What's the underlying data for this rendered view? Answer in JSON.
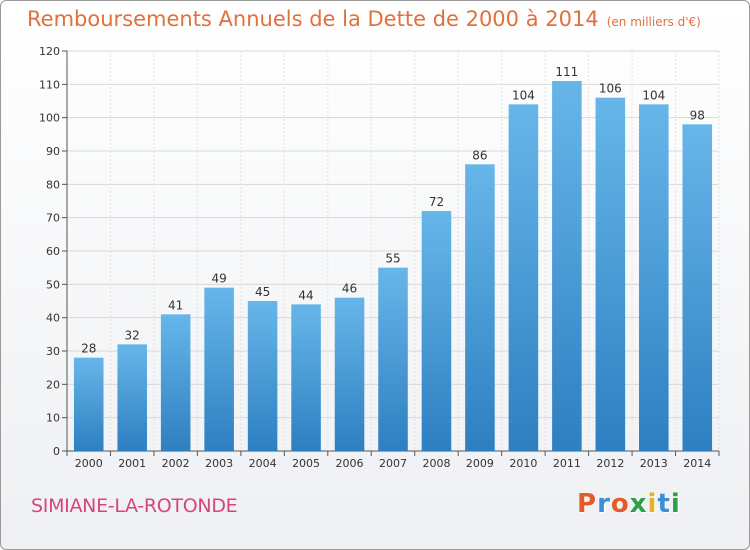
{
  "title": "Remboursements Annuels de la Dette de 2000 à 2014",
  "subtitle": "(en milliers d'€)",
  "commune": "SIMIANE-LA-ROTONDE",
  "logo": {
    "letters": [
      "P",
      "r",
      "o",
      "x",
      "i",
      "t",
      "i"
    ],
    "colors": [
      "#e35b2b",
      "#3a8fd8",
      "#e35b2b",
      "#2f9e44",
      "#e0b32a",
      "#3a8fd8",
      "#2f9e44"
    ]
  },
  "colors": {
    "bar_light": "#67b6ea",
    "bar_dark": "#2e7fc1",
    "title": "#e0703c",
    "commune": "#d6457f"
  },
  "chart_data": {
    "type": "bar",
    "categories": [
      "2000",
      "2001",
      "2002",
      "2003",
      "2004",
      "2005",
      "2006",
      "2007",
      "2008",
      "2009",
      "2010",
      "2011",
      "2012",
      "2013",
      "2014"
    ],
    "values": [
      28,
      32,
      41,
      49,
      45,
      44,
      46,
      55,
      72,
      86,
      104,
      111,
      106,
      104,
      98
    ],
    "ylim": [
      0,
      120
    ],
    "yticks": [
      0,
      10,
      20,
      30,
      40,
      50,
      60,
      70,
      80,
      90,
      100,
      110,
      120
    ],
    "grid": true
  }
}
